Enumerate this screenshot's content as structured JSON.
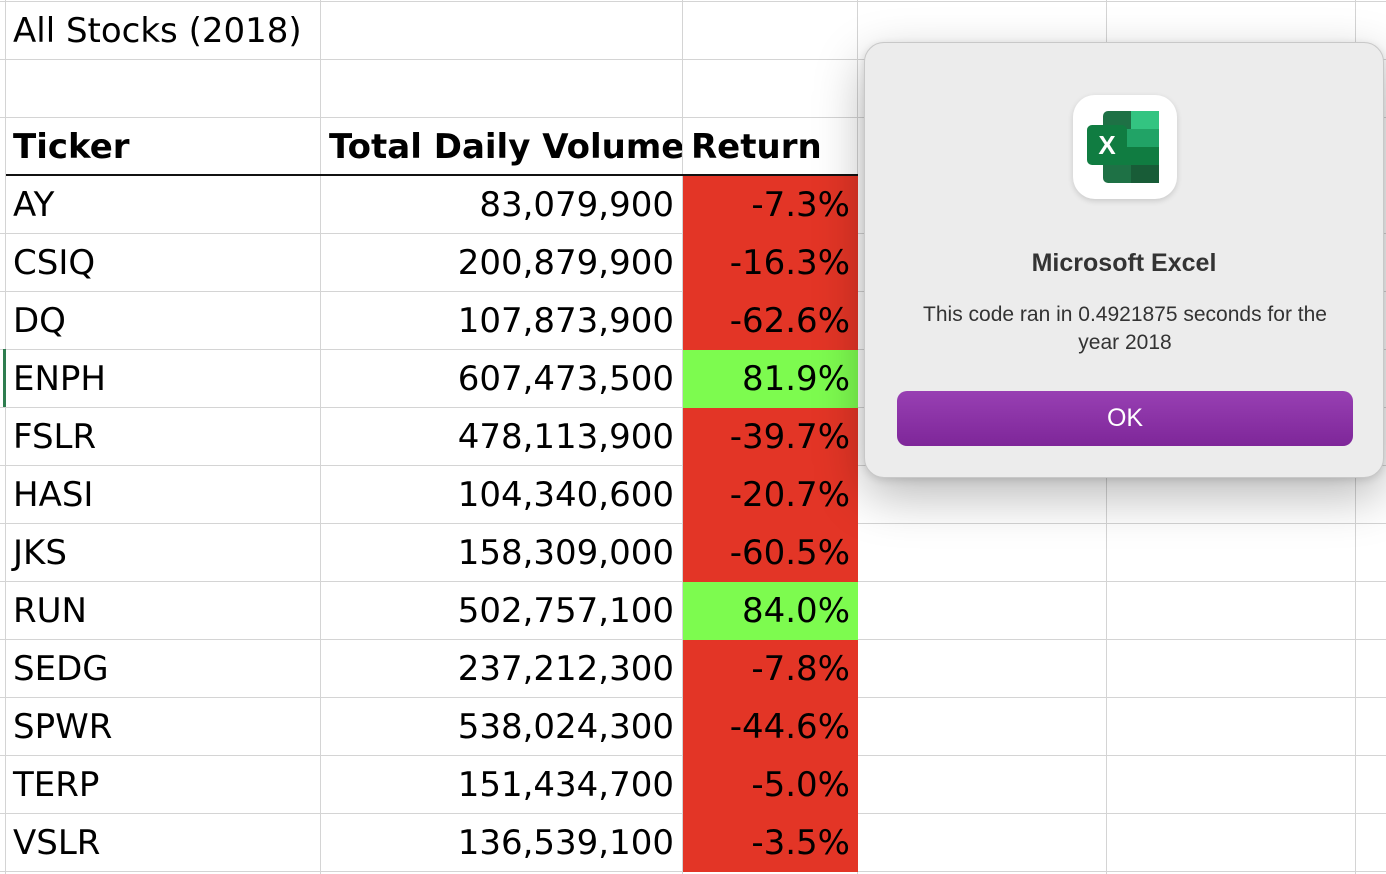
{
  "sheet": {
    "title": "All Stocks (2018)",
    "headers": {
      "ticker": "Ticker",
      "volume": "Total Daily Volume",
      "return": "Return"
    },
    "rows": [
      {
        "ticker": "AY",
        "volume": "83,079,900",
        "return": "-7.3%",
        "status": "negative"
      },
      {
        "ticker": "CSIQ",
        "volume": "200,879,900",
        "return": "-16.3%",
        "status": "negative"
      },
      {
        "ticker": "DQ",
        "volume": "107,873,900",
        "return": "-62.6%",
        "status": "negative"
      },
      {
        "ticker": "ENPH",
        "volume": "607,473,500",
        "return": "81.9%",
        "status": "positive"
      },
      {
        "ticker": "FSLR",
        "volume": "478,113,900",
        "return": "-39.7%",
        "status": "negative"
      },
      {
        "ticker": "HASI",
        "volume": "104,340,600",
        "return": "-20.7%",
        "status": "negative"
      },
      {
        "ticker": "JKS",
        "volume": "158,309,000",
        "return": "-60.5%",
        "status": "negative"
      },
      {
        "ticker": "RUN",
        "volume": "502,757,100",
        "return": "84.0%",
        "status": "positive"
      },
      {
        "ticker": "SEDG",
        "volume": "237,212,300",
        "return": "-7.8%",
        "status": "negative"
      },
      {
        "ticker": "SPWR",
        "volume": "538,024,300",
        "return": "-44.6%",
        "status": "negative"
      },
      {
        "ticker": "TERP",
        "volume": "151,434,700",
        "return": "-5.0%",
        "status": "negative"
      },
      {
        "ticker": "VSLR",
        "volume": "136,539,100",
        "return": "-3.5%",
        "status": "negative"
      }
    ],
    "colors": {
      "negative": "#e33526",
      "positive": "#7dfb4f"
    }
  },
  "dialog": {
    "app_icon": "excel-icon",
    "icon_letter": "X",
    "title": "Microsoft Excel",
    "message": "This code ran in 0.4921875 seconds for the year 2018",
    "ok_label": "OK",
    "button_color": "#8a2fa6"
  }
}
